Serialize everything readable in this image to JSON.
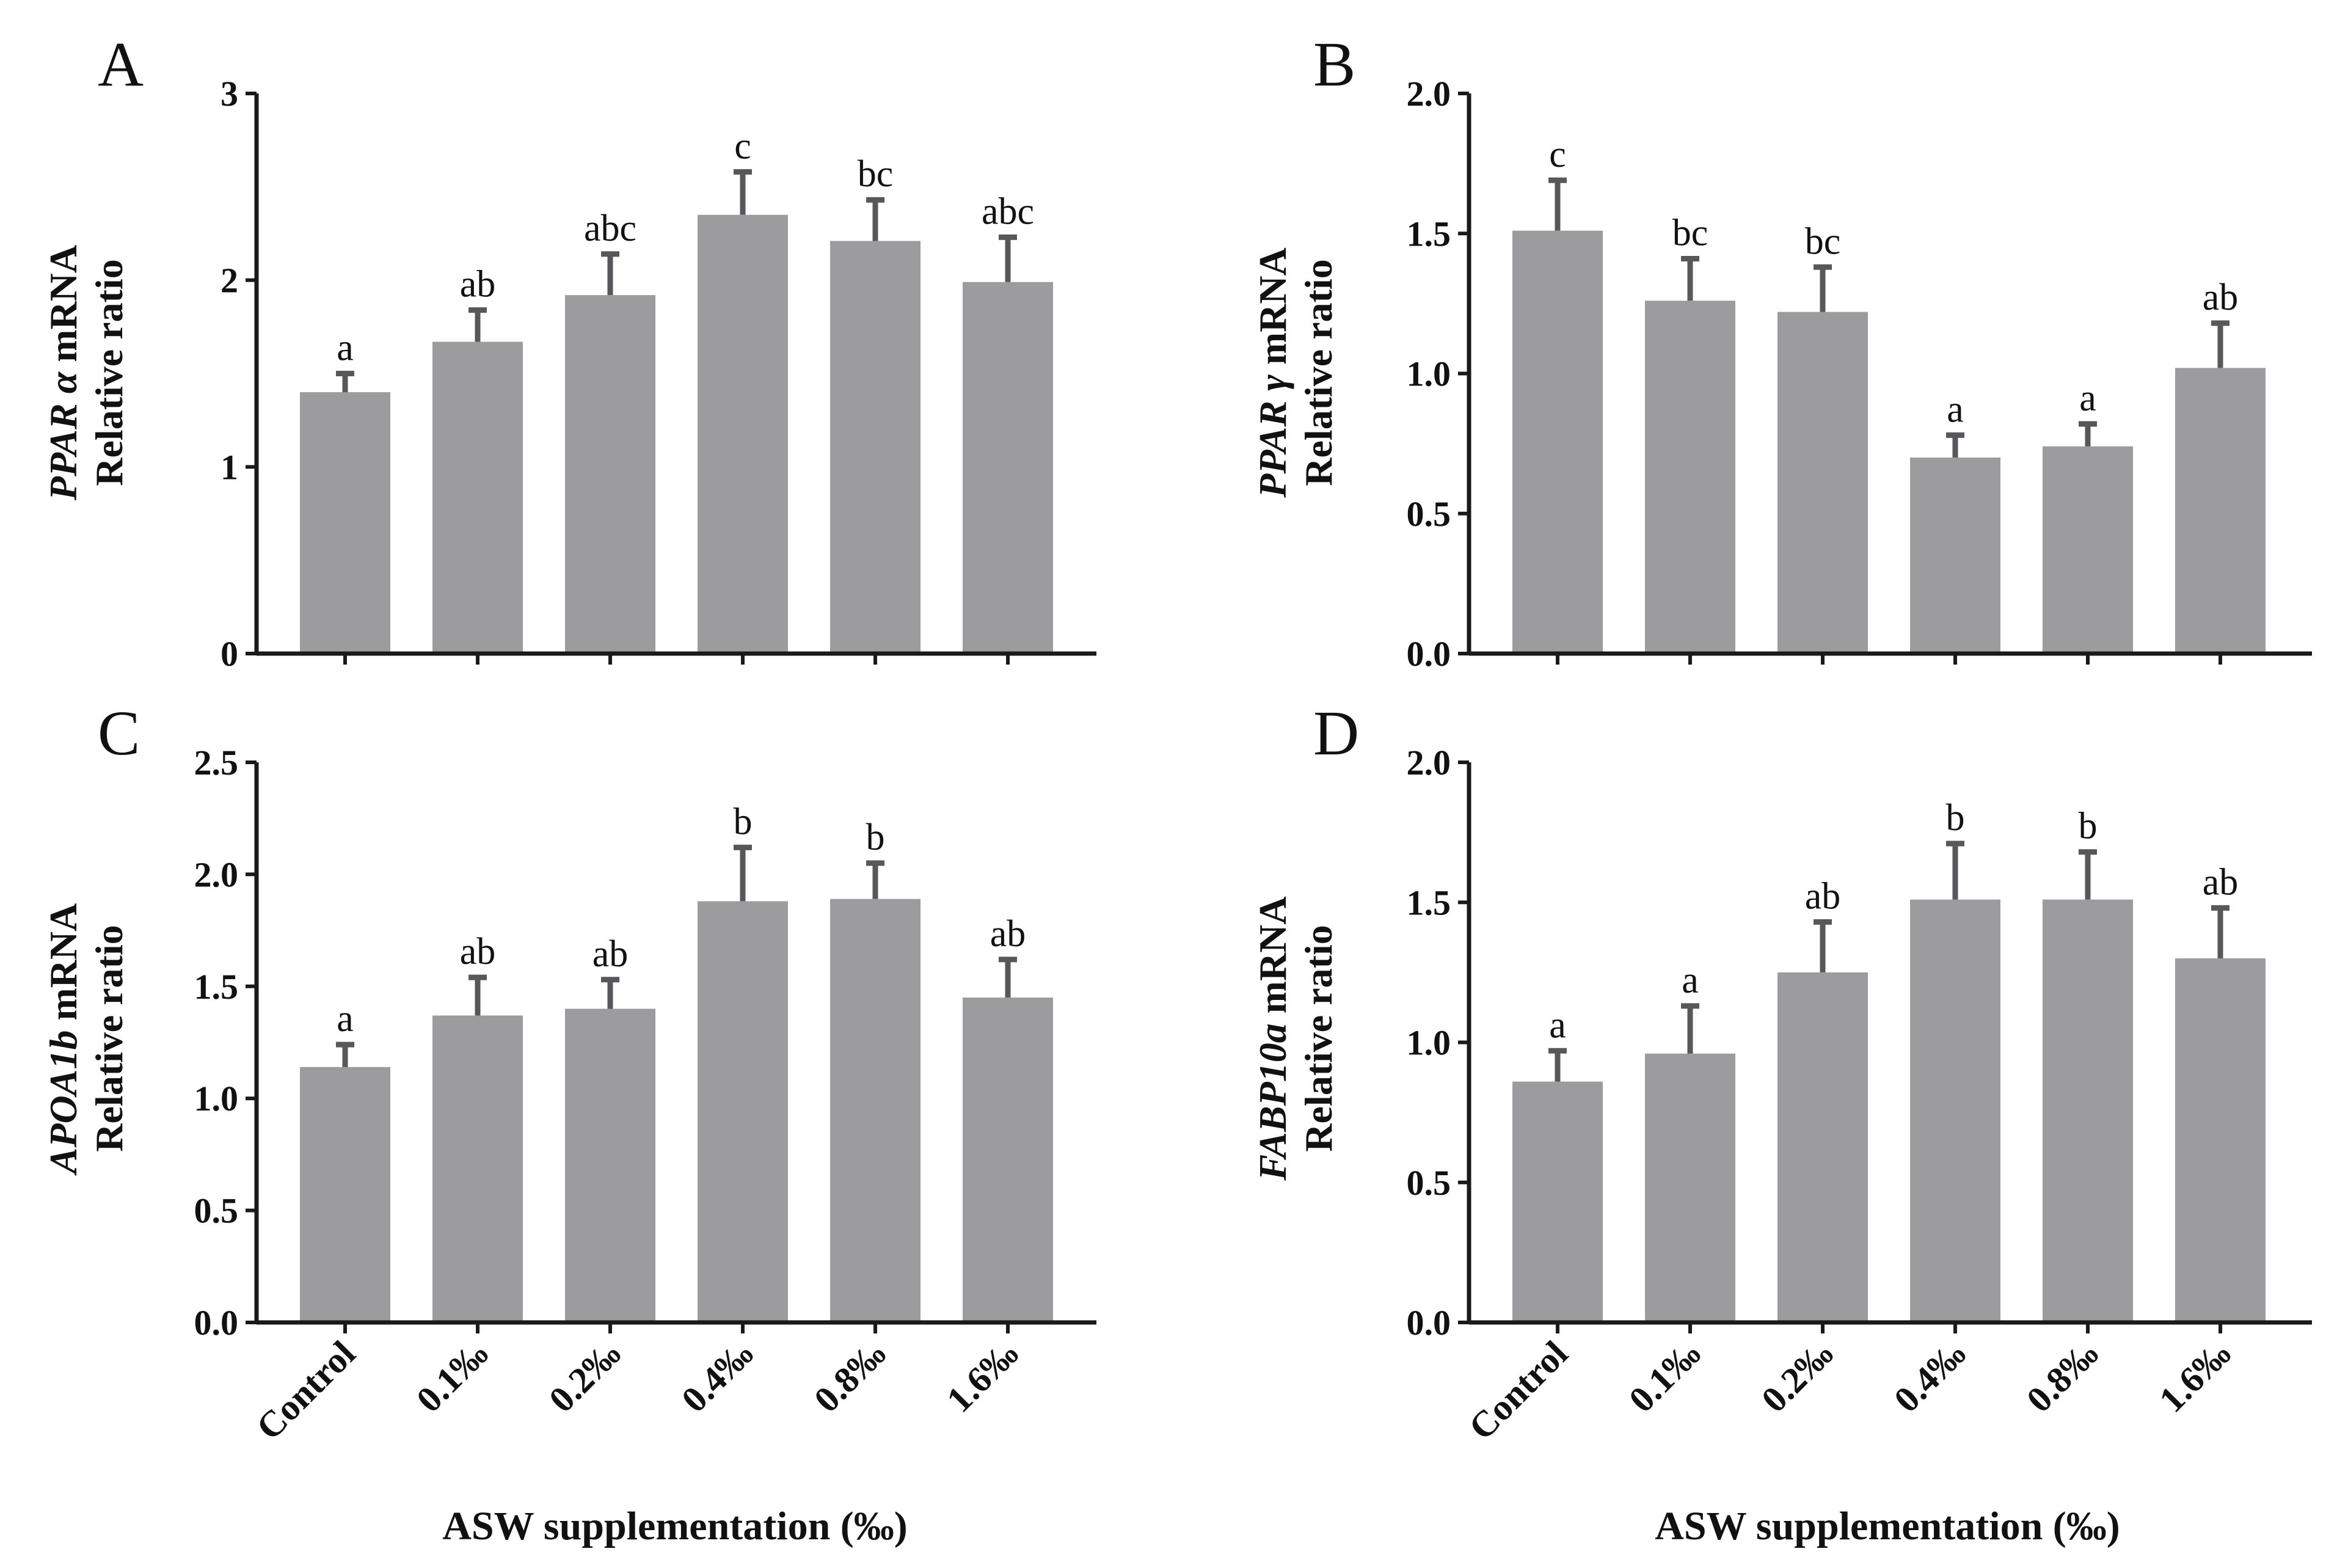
{
  "figure": {
    "x_axis_title": "ASW supplementation (‰)",
    "categories": [
      "Control",
      "0.1‰",
      "0.2‰",
      "0.4‰",
      "0.8‰",
      "1.6‰"
    ],
    "bar_color": "#9c9c9f",
    "error_color": "#58585b",
    "axis_color": "#1a1a1a"
  },
  "chart_data": [
    {
      "panel": "A",
      "type": "bar",
      "gene": "PPAR α",
      "ylabel_italic": "PPAR α",
      "ylabel_rest": " mRNA",
      "ylabel_line2": "Relative ratio",
      "categories": [
        "Control",
        "0.1‰",
        "0.2‰",
        "0.4‰",
        "0.8‰",
        "1.6‰"
      ],
      "values": [
        1.4,
        1.67,
        1.92,
        2.35,
        2.21,
        1.99
      ],
      "errors": [
        0.1,
        0.17,
        0.22,
        0.23,
        0.22,
        0.24
      ],
      "significance": [
        "a",
        "ab",
        "abc",
        "c",
        "bc",
        "abc"
      ],
      "ylim": [
        0,
        3
      ],
      "yticks": [
        0,
        1,
        2,
        3
      ],
      "ytick_labels": [
        "0",
        "1",
        "2",
        "3"
      ]
    },
    {
      "panel": "B",
      "type": "bar",
      "gene": "PPAR γ",
      "ylabel_italic": "PPAR γ",
      "ylabel_rest": " mRNA",
      "ylabel_line2": "Relative ratio",
      "categories": [
        "Control",
        "0.1‰",
        "0.2‰",
        "0.4‰",
        "0.8‰",
        "1.6‰"
      ],
      "values": [
        1.51,
        1.26,
        1.22,
        0.7,
        0.74,
        1.02
      ],
      "errors": [
        0.18,
        0.15,
        0.16,
        0.08,
        0.08,
        0.16
      ],
      "significance": [
        "c",
        "bc",
        "bc",
        "a",
        "a",
        "ab"
      ],
      "ylim": [
        0,
        2.0
      ],
      "yticks": [
        0,
        0.5,
        1.0,
        1.5,
        2.0
      ],
      "ytick_labels": [
        "0.0",
        "0.5",
        "1.0",
        "1.5",
        "2.0"
      ]
    },
    {
      "panel": "C",
      "type": "bar",
      "gene": "APOA1b",
      "ylabel_italic": "APOA1b",
      "ylabel_rest": " mRNA",
      "ylabel_line2": "Relative ratio",
      "categories": [
        "Control",
        "0.1‰",
        "0.2‰",
        "0.4‰",
        "0.8‰",
        "1.6‰"
      ],
      "values": [
        1.14,
        1.37,
        1.4,
        1.88,
        1.89,
        1.45
      ],
      "errors": [
        0.1,
        0.17,
        0.13,
        0.24,
        0.16,
        0.17
      ],
      "significance": [
        "a",
        "ab",
        "ab",
        "b",
        "b",
        "ab"
      ],
      "ylim": [
        0,
        2.5
      ],
      "yticks": [
        0,
        0.5,
        1.0,
        1.5,
        2.0,
        2.5
      ],
      "ytick_labels": [
        "0.0",
        "0.5",
        "1.0",
        "1.5",
        "2.0",
        "2.5"
      ]
    },
    {
      "panel": "D",
      "type": "bar",
      "gene": "FABP10a",
      "ylabel_italic": "FABP10a",
      "ylabel_rest": " mRNA",
      "ylabel_line2": "Relative ratio",
      "categories": [
        "Control",
        "0.1‰",
        "0.2‰",
        "0.4‰",
        "0.8‰",
        "1.6‰"
      ],
      "values": [
        0.86,
        0.96,
        1.25,
        1.51,
        1.51,
        1.3
      ],
      "errors": [
        0.11,
        0.17,
        0.18,
        0.2,
        0.17,
        0.18
      ],
      "significance": [
        "a",
        "a",
        "ab",
        "b",
        "b",
        "ab"
      ],
      "ylim": [
        0,
        2.0
      ],
      "yticks": [
        0,
        0.5,
        1.0,
        1.5,
        2.0
      ],
      "ytick_labels": [
        "0.0",
        "0.5",
        "1.0",
        "1.5",
        "2.0"
      ]
    }
  ]
}
